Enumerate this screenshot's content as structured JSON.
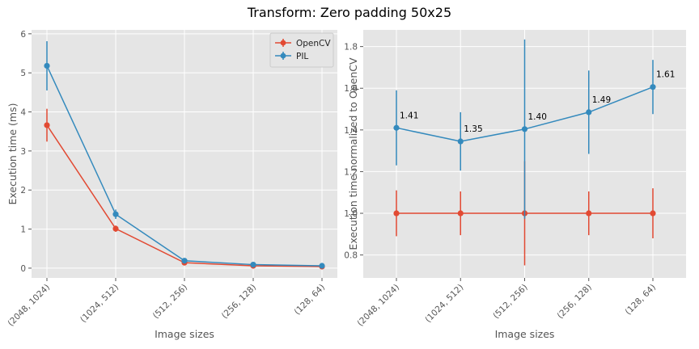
{
  "figure": {
    "title": "Transform: Zero padding 50x25"
  },
  "chart_data": [
    {
      "type": "line",
      "categories": [
        "(2048, 1024)",
        "(1024, 512)",
        "(512, 256)",
        "(256, 128)",
        "(128, 64)"
      ],
      "xlabel": "Image sizes",
      "ylabel": "Execution time (ms)",
      "ylim": [
        -0.25,
        6.1
      ],
      "yticks": [
        0,
        1,
        2,
        3,
        4,
        5,
        6
      ],
      "grid": true,
      "legend_position": "top-right",
      "series": [
        {
          "name": "OpenCV",
          "color": "#e24a33",
          "values": [
            3.66,
            1.01,
            0.14,
            0.06,
            0.04
          ],
          "errors": [
            0.42,
            0.08,
            0.03,
            0.02,
            0.01
          ]
        },
        {
          "name": "PIL",
          "color": "#348abd",
          "values": [
            5.18,
            1.38,
            0.19,
            0.09,
            0.06
          ],
          "errors": [
            0.63,
            0.12,
            0.03,
            0.02,
            0.01
          ]
        }
      ]
    },
    {
      "type": "line",
      "categories": [
        "(2048, 1024)",
        "(1024, 512)",
        "(512, 256)",
        "(256, 128)",
        "(128, 64)"
      ],
      "xlabel": "Image sizes",
      "ylabel": "Execution time normalized to OpenCV",
      "ylim": [
        0.69,
        1.88
      ],
      "yticks": [
        0.8,
        1.0,
        1.2,
        1.4,
        1.6,
        1.8
      ],
      "grid": true,
      "series": [
        {
          "color": "#e24a33",
          "values": [
            1.0,
            1.0,
            1.0,
            1.0,
            1.0
          ],
          "errors": [
            0.11,
            0.105,
            0.25,
            0.105,
            0.12
          ]
        },
        {
          "color": "#348abd",
          "values": [
            1.41,
            1.345,
            1.404,
            1.485,
            1.606
          ],
          "errors": [
            0.18,
            0.14,
            0.43,
            0.2,
            0.13
          ],
          "labels": [
            "1.41",
            "1.35",
            "1.40",
            "1.49",
            "1.61"
          ]
        }
      ]
    }
  ]
}
